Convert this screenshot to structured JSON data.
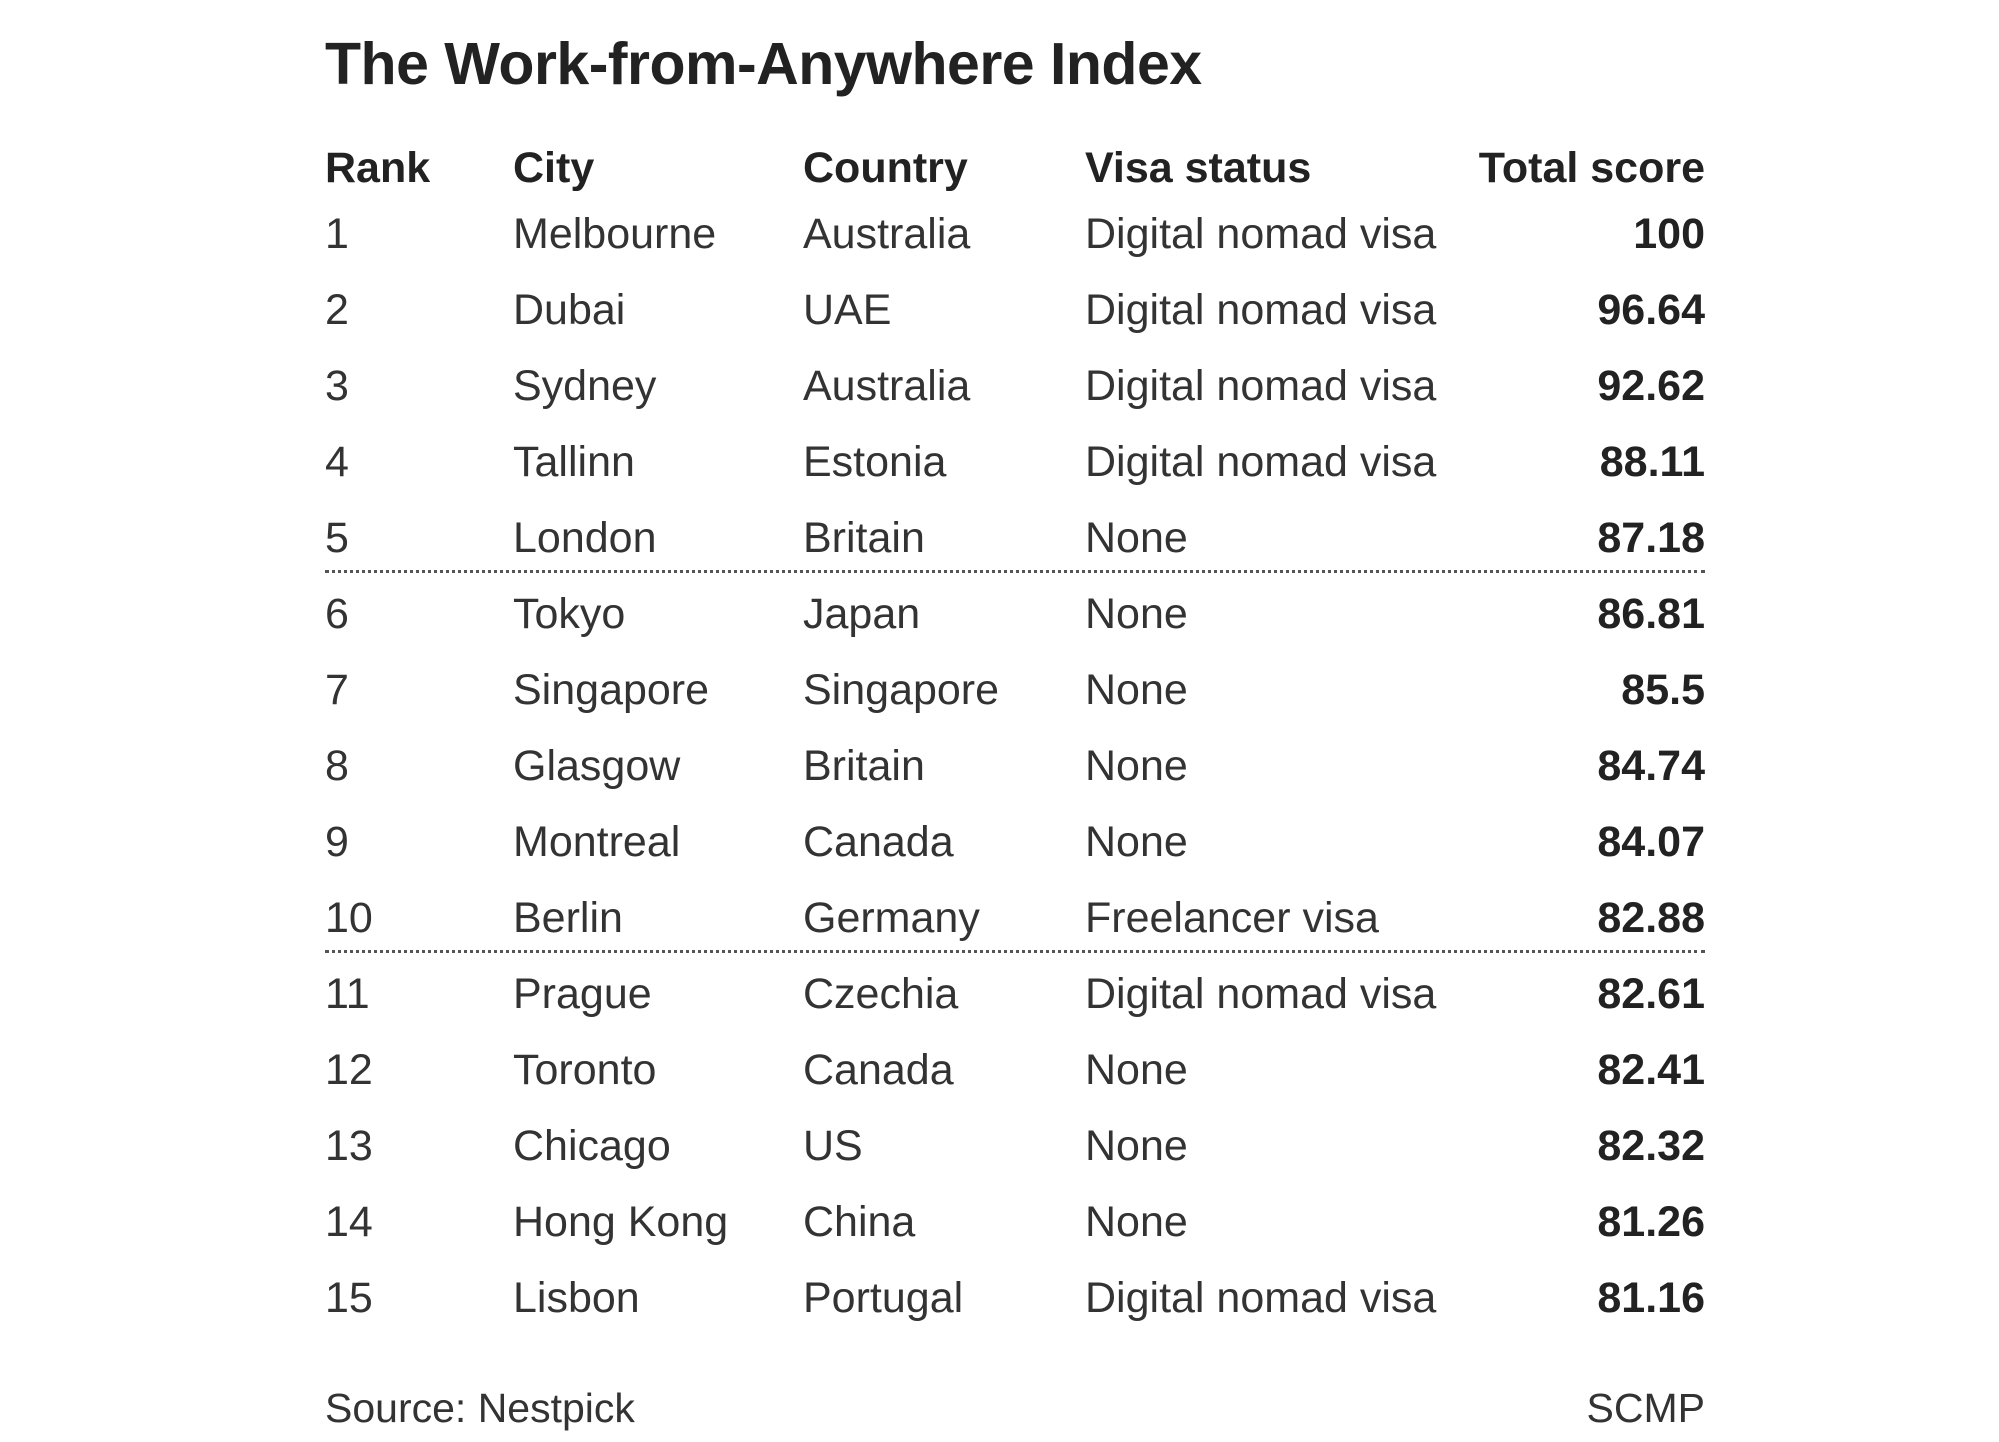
{
  "chart_data": {
    "type": "table",
    "title": "The Work-from-Anywhere Index",
    "columns": [
      "Rank",
      "City",
      "Country",
      "Visa status",
      "Total score"
    ],
    "rows": [
      {
        "rank": "1",
        "city": "Melbourne",
        "country": "Australia",
        "visa": "Digital nomad visa",
        "score": "100"
      },
      {
        "rank": "2",
        "city": "Dubai",
        "country": "UAE",
        "visa": "Digital nomad visa",
        "score": "96.64"
      },
      {
        "rank": "3",
        "city": "Sydney",
        "country": "Australia",
        "visa": "Digital nomad visa",
        "score": "92.62"
      },
      {
        "rank": "4",
        "city": "Tallinn",
        "country": "Estonia",
        "visa": "Digital nomad visa",
        "score": "88.11"
      },
      {
        "rank": "5",
        "city": "London",
        "country": "Britain",
        "visa": "None",
        "score": "87.18"
      },
      {
        "rank": "6",
        "city": "Tokyo",
        "country": "Japan",
        "visa": "None",
        "score": "86.81"
      },
      {
        "rank": "7",
        "city": "Singapore",
        "country": "Singapore",
        "visa": "None",
        "score": "85.5"
      },
      {
        "rank": "8",
        "city": "Glasgow",
        "country": "Britain",
        "visa": "None",
        "score": "84.74"
      },
      {
        "rank": "9",
        "city": "Montreal",
        "country": "Canada",
        "visa": "None",
        "score": "84.07"
      },
      {
        "rank": "10",
        "city": "Berlin",
        "country": "Germany",
        "visa": "Freelancer visa",
        "score": "82.88"
      },
      {
        "rank": "11",
        "city": "Prague",
        "country": "Czechia",
        "visa": "Digital nomad visa",
        "score": "82.61"
      },
      {
        "rank": "12",
        "city": "Toronto",
        "country": "Canada",
        "visa": "None",
        "score": "82.41"
      },
      {
        "rank": "13",
        "city": "Chicago",
        "country": "US",
        "visa": "None",
        "score": "82.32"
      },
      {
        "rank": "14",
        "city": "Hong Kong",
        "country": "China",
        "visa": "None",
        "score": "81.26"
      },
      {
        "rank": "15",
        "city": "Lisbon",
        "country": "Portugal",
        "visa": "Digital nomad visa",
        "score": "81.16"
      }
    ],
    "dividers_after_rank": [
      5,
      10
    ]
  },
  "footer": {
    "source": "Source: Nestpick",
    "credit": "SCMP"
  }
}
